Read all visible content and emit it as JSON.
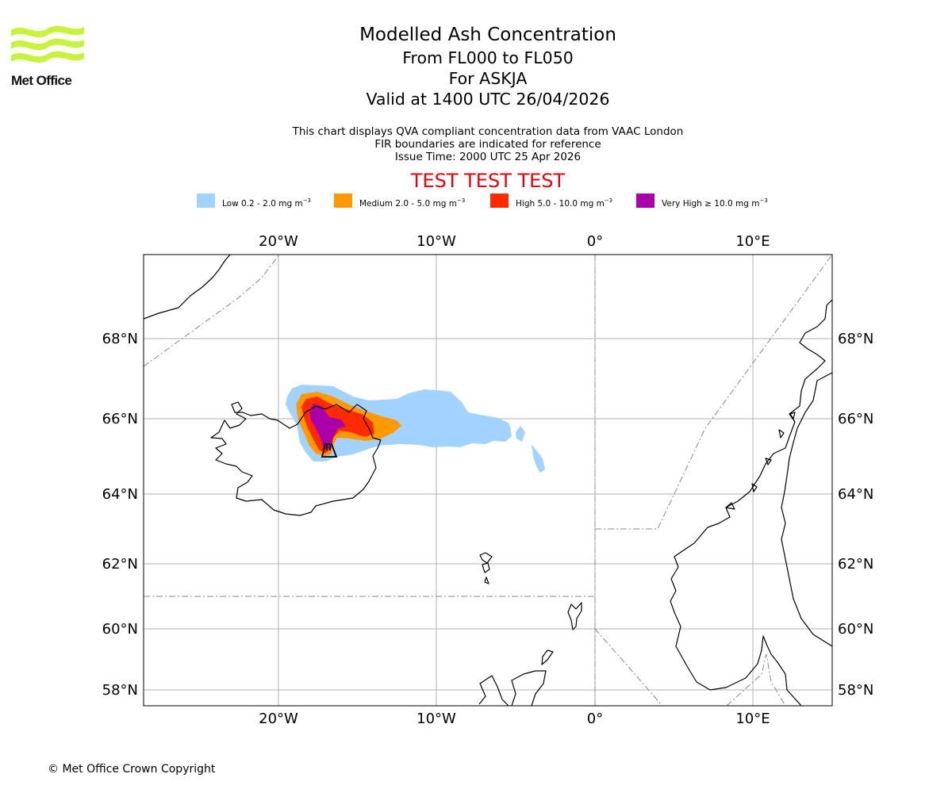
{
  "header": {
    "logo_name": "Met Office",
    "logo_color": "#c8f23c",
    "title": "Modelled Ash Concentration",
    "level_range": "From FL000 to FL050",
    "volcano_line": "For ASKJA",
    "valid_time": "Valid at 1400 UTC 26/04/2026",
    "info_lines": [
      "This chart displays QVA compliant concentration data from VAAC London",
      "FIR boundaries are indicated for reference",
      "Issue Time: 2000 UTC 25 Apr 2026"
    ],
    "test_banner": "TEST TEST TEST",
    "test_banner_color": "#e8000b"
  },
  "legend": [
    {
      "label": "Low 0.2 - 2.0 mg m",
      "exponent": "−3",
      "color": "#a2d2ff"
    },
    {
      "label": "Medium 2.0 - 5.0 mg m",
      "exponent": "−3",
      "color": "#ff9900"
    },
    {
      "label": "High 5.0 - 10.0 mg m",
      "exponent": "−3",
      "color": "#ff2a00"
    },
    {
      "label": "Very High  ≥  10.0 mg m",
      "exponent": "−3",
      "color": "#aa00aa"
    }
  ],
  "map": {
    "gridline_color": "#b0b0b0",
    "fir_line_color": "#888888",
    "lon_labels": [
      {
        "text": "20°W",
        "lon": -20
      },
      {
        "text": "10°W",
        "lon": -10
      },
      {
        "text": "0°",
        "lon": 0
      },
      {
        "text": "10°E",
        "lon": 10
      }
    ],
    "lat_labels": [
      {
        "text": "68°N",
        "lat": 68
      },
      {
        "text": "66°N",
        "lat": 66
      },
      {
        "text": "64°N",
        "lat": 64
      },
      {
        "text": "62°N",
        "lat": 62
      },
      {
        "text": "60°N",
        "lat": 60
      },
      {
        "text": "58°N",
        "lat": 58
      }
    ]
  },
  "footer": {
    "copyright": "© Met Office Crown Copyright"
  }
}
